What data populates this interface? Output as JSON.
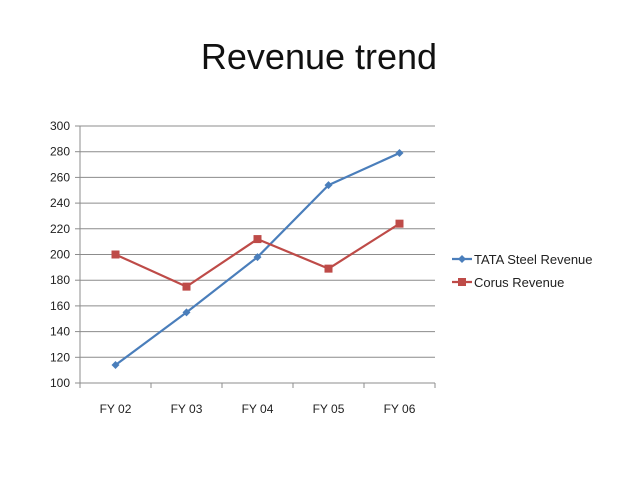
{
  "chart_data": {
    "type": "line",
    "title": "Revenue trend",
    "xlabel": "",
    "ylabel": "",
    "categories": [
      "FY 02",
      "FY 03",
      "FY 04",
      "FY 05",
      "FY 06"
    ],
    "ylim": [
      100,
      300
    ],
    "yticks": [
      100,
      120,
      140,
      160,
      180,
      200,
      220,
      240,
      260,
      280,
      300
    ],
    "grid": true,
    "legend_position": "right",
    "series": [
      {
        "name": "TATA Steel Revenue",
        "values": [
          114,
          155,
          198,
          254,
          279
        ],
        "color": "#4a7ebb",
        "marker": "diamond"
      },
      {
        "name": "Corus Revenue",
        "values": [
          200,
          175,
          212,
          189,
          224
        ],
        "color": "#be4b48",
        "marker": "square"
      }
    ]
  }
}
